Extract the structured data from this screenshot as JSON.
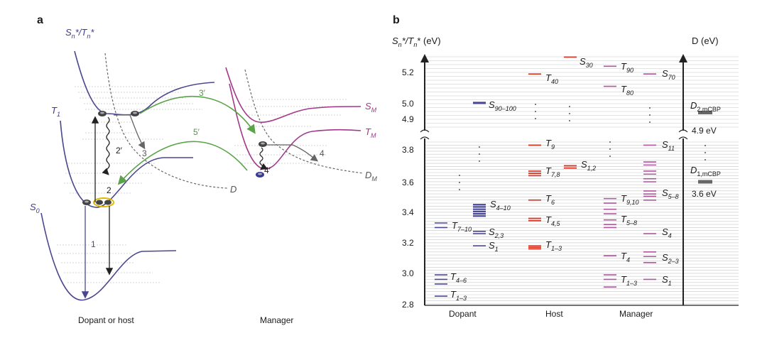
{
  "colors": {
    "dopant_curve": "#4b478f",
    "manager_curve": "#a3378b",
    "transfer_arrow": "#5aa348",
    "host_level": "#d83a2a",
    "dopant_level": "#4a4896",
    "manager_level": "#b055a0",
    "grid": "#c8c8c8"
  },
  "panel_a": {
    "panel_label": "a",
    "curves": {
      "excited": {
        "label": "S",
        "sub": "n",
        "suffix": "*/T",
        "sub2": "n",
        "suffix2": "*"
      },
      "t1": {
        "label": "T",
        "sub": "1"
      },
      "s0": {
        "label": "S",
        "sub": "0"
      },
      "sm": {
        "label": "S",
        "sub": "M"
      },
      "tm": {
        "label": "T",
        "sub": "M"
      },
      "dm": {
        "label": "D",
        "sub": "M"
      },
      "d": {
        "label": "D"
      }
    },
    "process_labels": [
      "1",
      "2",
      "2′",
      "3",
      "3′",
      "4",
      "4′",
      "5′"
    ],
    "x_labels": [
      "Dopant or host",
      "Manager"
    ]
  },
  "panel_b": {
    "panel_label": "b",
    "y_left_title": {
      "main": "S",
      "sub": "n",
      "rest": "*/T",
      "sub2": "n",
      "rest2": "* (eV)"
    },
    "y_right_title": "D (eV)",
    "columns": [
      "Dopant",
      "Host",
      "Manager"
    ],
    "upper_ticks": [
      "5.2",
      "5.0",
      "4.9"
    ],
    "lower_ticks": [
      "3.8",
      "3.6",
      "3.4",
      "3.2",
      "3.0",
      "2.8"
    ],
    "d_labels": [
      {
        "main": "D",
        "sub": "2,mCBP",
        "value": "4.9 eV"
      },
      {
        "main": "D",
        "sub": "1,mCBP",
        "value": "3.6 eV"
      }
    ],
    "dopant_labels": [
      {
        "main": "S",
        "sub": "90–100"
      },
      {
        "main": "S",
        "sub": "4–10"
      },
      {
        "main": "T",
        "sub": "7–10"
      },
      {
        "main": "S",
        "sub": "2,3"
      },
      {
        "main": "S",
        "sub": "1"
      },
      {
        "main": "T",
        "sub": "4–6"
      },
      {
        "main": "T",
        "sub": "1–3"
      }
    ],
    "host_labels": [
      {
        "main": "S",
        "sub": "30"
      },
      {
        "main": "T",
        "sub": "40"
      },
      {
        "main": "T",
        "sub": "9"
      },
      {
        "main": "T",
        "sub": "7,8"
      },
      {
        "main": "S",
        "sub": "1,2"
      },
      {
        "main": "T",
        "sub": "6"
      },
      {
        "main": "T",
        "sub": "4,5"
      },
      {
        "main": "T",
        "sub": "1–3"
      }
    ],
    "manager_labels": [
      {
        "main": "T",
        "sub": "90"
      },
      {
        "main": "S",
        "sub": "70"
      },
      {
        "main": "T",
        "sub": "80"
      },
      {
        "main": "S",
        "sub": "11"
      },
      {
        "main": "T",
        "sub": "9,10"
      },
      {
        "main": "S",
        "sub": "5–8"
      },
      {
        "main": "T",
        "sub": "5–8"
      },
      {
        "main": "S",
        "sub": "4"
      },
      {
        "main": "T",
        "sub": "4"
      },
      {
        "main": "S",
        "sub": "2–3"
      },
      {
        "main": "T",
        "sub": "1–3"
      },
      {
        "main": "S",
        "sub": "1"
      }
    ],
    "levels": {
      "dopant": [
        5.0,
        5.005,
        3.46,
        3.445,
        3.43,
        3.415,
        3.4,
        3.385,
        3.34,
        3.31,
        3.285,
        3.27,
        3.19,
        3.0,
        2.97,
        2.94,
        2.86
      ],
      "host": [
        5.3,
        5.19,
        3.85,
        3.68,
        3.665,
        3.65,
        3.715,
        3.7,
        3.49,
        3.37,
        3.355,
        3.19,
        3.18,
        3.17
      ],
      "manager_t": [
        5.24,
        5.11,
        3.5,
        3.47,
        3.43,
        3.4,
        3.36,
        3.33,
        3.31,
        3.125,
        3.0,
        2.97,
        2.92
      ],
      "manager_s": [
        5.19,
        3.85,
        3.74,
        3.72,
        3.68,
        3.66,
        3.63,
        3.61,
        3.55,
        3.53,
        3.515,
        3.49,
        3.27,
        3.15,
        3.12,
        3.08,
        2.97
      ],
      "d_bars": [
        4.94,
        3.61
      ]
    }
  }
}
